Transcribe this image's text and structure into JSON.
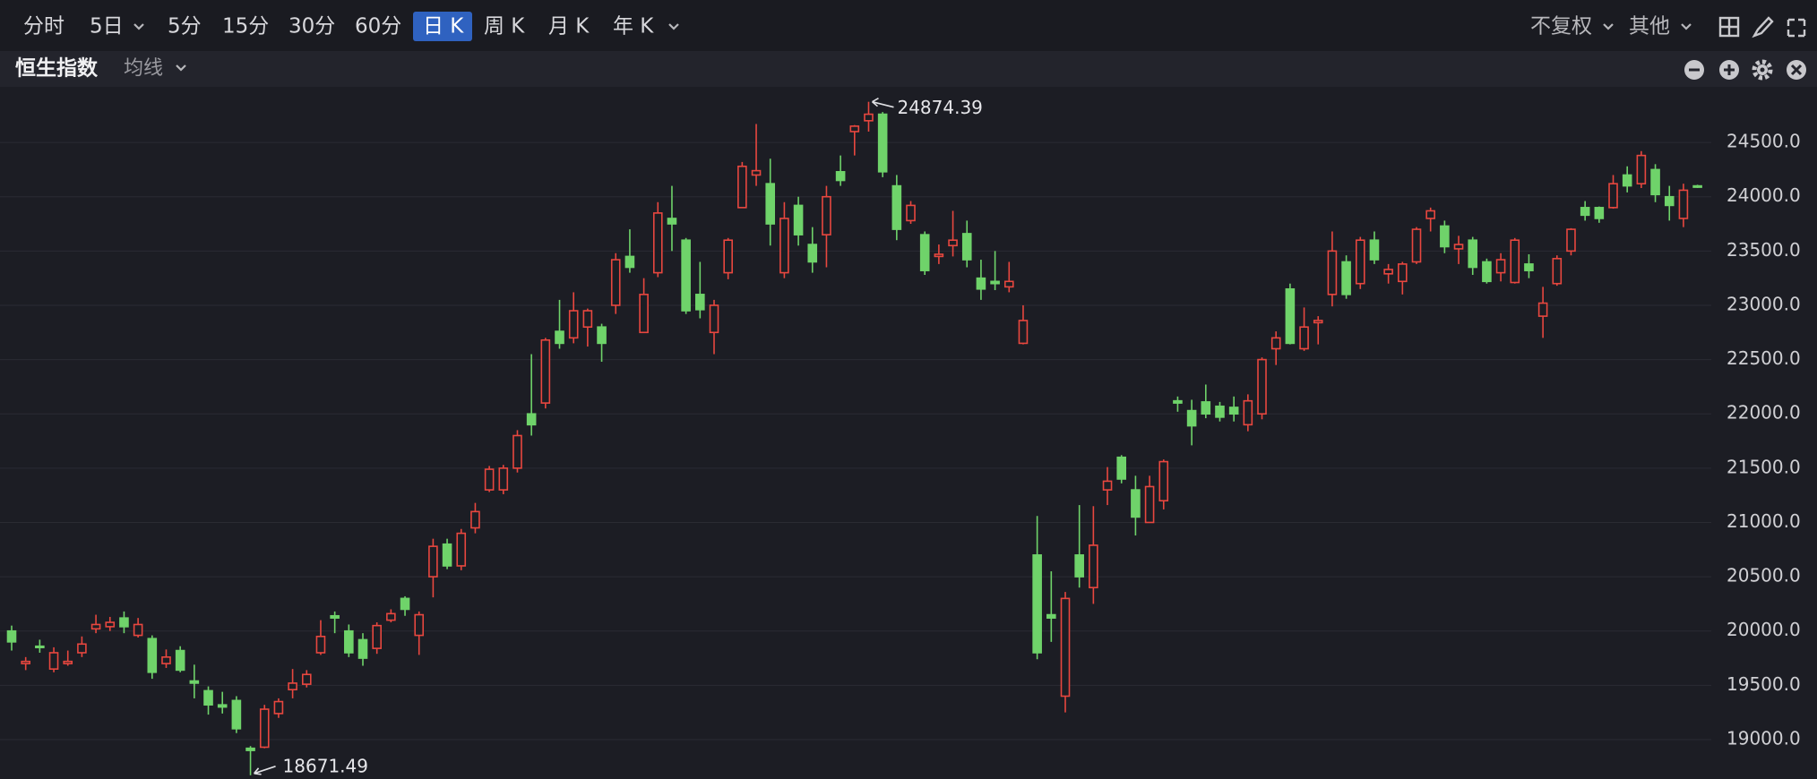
{
  "toolbar": {
    "tabs": [
      "分时",
      "5日",
      "5分",
      "15分",
      "30分",
      "60分",
      "日 K",
      "周 K",
      "月 K",
      "年 K"
    ],
    "active": 6,
    "adjust": "不复权",
    "other": "其他"
  },
  "panel": {
    "title": "恒生指数",
    "indicator": "均线"
  },
  "chart_data": {
    "type": "candlestick",
    "up_color": "#e8473f",
    "down_color": "#6fd36a",
    "open": [
      20000,
      19700,
      19860,
      19650,
      19700,
      19800,
      20020,
      20040,
      20120,
      19960,
      19930,
      19700,
      19820,
      19540,
      19450,
      19320,
      19360,
      18920,
      18930,
      19240,
      19460,
      19510,
      19800,
      20140,
      20000,
      19920,
      19840,
      20100,
      20300,
      19960,
      20500,
      20800,
      20600,
      20950,
      21300,
      21300,
      21500,
      22000,
      22100,
      22760,
      22700,
      22800,
      22800,
      23000,
      23450,
      22750,
      23300,
      23800,
      23600,
      23100,
      22750,
      23300,
      23900,
      24200,
      24120,
      23300,
      23920,
      23560,
      23650,
      24230,
      24600,
      24700,
      24760,
      24100,
      23780,
      23650,
      23450,
      23550,
      23660,
      23250,
      23220,
      23170,
      22650,
      20700,
      20150,
      19400,
      20700,
      20400,
      21300,
      21600,
      21300,
      21000,
      21200,
      22120,
      22030,
      22110,
      22070,
      22060,
      21900,
      22000,
      22600,
      23150,
      22600,
      22840,
      23100,
      23400,
      23200,
      23600,
      23290,
      23220,
      23400,
      23800,
      23730,
      23520,
      23600,
      23400,
      23300,
      23210,
      23380,
      22900,
      23200,
      23500,
      23900,
      23900,
      23900,
      24200,
      24120,
      24250,
      24000,
      23800,
      24100
    ],
    "high": [
      20050,
      19760,
      19920,
      19850,
      19820,
      19950,
      20150,
      20130,
      20180,
      20120,
      19960,
      19830,
      19860,
      19690,
      19490,
      19440,
      19400,
      18940,
      19320,
      19380,
      19650,
      19640,
      20100,
      20180,
      20060,
      19980,
      20080,
      20200,
      20320,
      20180,
      20850,
      20850,
      20940,
      21180,
      21520,
      21530,
      21850,
      22550,
      22700,
      23050,
      23120,
      22970,
      22830,
      23480,
      23700,
      23250,
      23950,
      24100,
      23620,
      23400,
      23050,
      23620,
      24320,
      24670,
      24350,
      23950,
      24000,
      23720,
      24100,
      24380,
      24660,
      24874.39,
      24780,
      24200,
      23960,
      23680,
      23560,
      23870,
      23780,
      23420,
      23500,
      23400,
      23000,
      21060,
      20550,
      20360,
      21160,
      21150,
      21510,
      21620,
      21430,
      21430,
      21580,
      22160,
      22130,
      22270,
      22110,
      22160,
      22180,
      22520,
      22760,
      23200,
      22980,
      22900,
      23680,
      23460,
      23630,
      23680,
      23380,
      23400,
      23720,
      23900,
      23780,
      23640,
      23630,
      23430,
      23480,
      23620,
      23470,
      23170,
      23460,
      23710,
      23960,
      23910,
      24200,
      24280,
      24420,
      24300,
      24100,
      24120,
      24110
    ],
    "low": [
      19820,
      19640,
      19800,
      19620,
      19680,
      19760,
      19980,
      20000,
      19980,
      19940,
      19560,
      19660,
      19620,
      19380,
      19230,
      19240,
      19060,
      18671.49,
      18920,
      19200,
      19380,
      19480,
      19780,
      19980,
      19760,
      19680,
      19790,
      20080,
      20140,
      19780,
      20310,
      20570,
      20560,
      20900,
      21280,
      21260,
      21460,
      21800,
      22050,
      22600,
      22650,
      22620,
      22480,
      22920,
      23300,
      22750,
      23260,
      23500,
      22920,
      22880,
      22550,
      23240,
      23900,
      24100,
      23550,
      23250,
      23550,
      23300,
      23350,
      24100,
      24380,
      24600,
      24180,
      23600,
      23750,
      23280,
      23380,
      23450,
      23350,
      23050,
      23140,
      23120,
      22640,
      19740,
      19900,
      19250,
      20400,
      20250,
      21160,
      21360,
      20880,
      21000,
      21120,
      22020,
      21710,
      21960,
      21930,
      21930,
      21840,
      21950,
      22450,
      22640,
      22580,
      22640,
      22990,
      23060,
      23150,
      23380,
      23200,
      23100,
      23380,
      23680,
      23480,
      23380,
      23280,
      23200,
      23220,
      23200,
      23250,
      22700,
      23180,
      23460,
      23780,
      23760,
      23890,
      24040,
      24080,
      23950,
      23780,
      23720,
      24080
    ],
    "close": [
      19900,
      19720,
      19850,
      19800,
      19720,
      19880,
      20060,
      20080,
      20040,
      20060,
      19620,
      19760,
      19640,
      19520,
      19320,
      19300,
      19100,
      18900,
      19280,
      19350,
      19520,
      19600,
      19950,
      20120,
      19800,
      19750,
      20050,
      20160,
      20200,
      20150,
      20780,
      20600,
      20900,
      21100,
      21490,
      21500,
      21800,
      21900,
      22680,
      22650,
      22950,
      22950,
      22650,
      23420,
      23350,
      23100,
      23850,
      23750,
      22950,
      22960,
      23000,
      23600,
      24280,
      24240,
      23750,
      23800,
      23650,
      23400,
      24000,
      24150,
      24650,
      24760,
      24230,
      23700,
      23920,
      23320,
      23470,
      23600,
      23420,
      23150,
      23200,
      23220,
      22860,
      19800,
      20120,
      20300,
      20500,
      20790,
      21380,
      21400,
      21050,
      21330,
      21560,
      22100,
      21890,
      22000,
      21970,
      22000,
      22120,
      22500,
      22700,
      22650,
      22800,
      22860,
      23500,
      23100,
      23600,
      23420,
      23330,
      23380,
      23700,
      23870,
      23540,
      23560,
      23350,
      23220,
      23420,
      23600,
      23320,
      23020,
      23430,
      23700,
      23830,
      23800,
      24120,
      24100,
      24380,
      24020,
      23920,
      24060,
      24090
    ],
    "ylim": [
      18637,
      25012
    ],
    "yticks": [
      {
        "value": 19000,
        "label": "19000.0"
      },
      {
        "value": 19500,
        "label": "19500.0"
      },
      {
        "value": 20000,
        "label": "20000.0"
      },
      {
        "value": 20500,
        "label": "20500.0"
      },
      {
        "value": 21000,
        "label": "21000.0"
      },
      {
        "value": 21500,
        "label": "21500.0"
      },
      {
        "value": 22000,
        "label": "22000.0"
      },
      {
        "value": 22500,
        "label": "22500.0"
      },
      {
        "value": 23000,
        "label": "23000.0"
      },
      {
        "value": 23500,
        "label": "23500.0"
      },
      {
        "value": 24000,
        "label": "24000.0"
      },
      {
        "value": 24500,
        "label": "24500.0"
      }
    ],
    "grid": true
  }
}
